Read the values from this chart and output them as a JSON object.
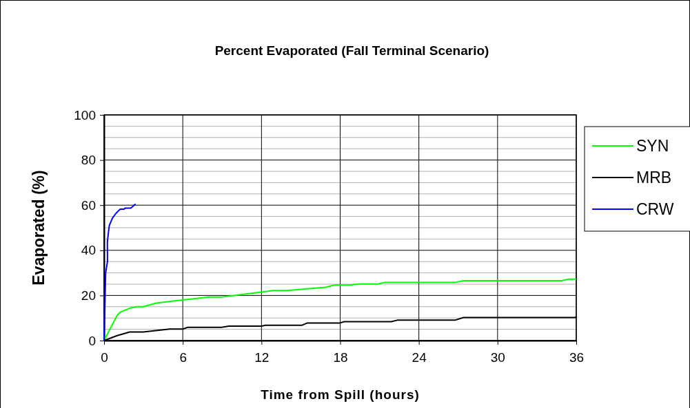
{
  "chart_data": {
    "type": "line",
    "title": "Percent Evaporated (Fall Terminal Scenario)",
    "xlabel": "Time from Spill (hours)",
    "ylabel": "Evaporated (%)",
    "xlim": [
      0,
      36
    ],
    "xticks": [
      0,
      6,
      12,
      18,
      24,
      30,
      36
    ],
    "ylim": [
      0,
      100
    ],
    "yticks": [
      0,
      20,
      40,
      60,
      80,
      100
    ],
    "grid": true,
    "legend": "right",
    "marker": "none",
    "line_style": "solid",
    "series": [
      {
        "name": "SYN",
        "color": "#00ff00",
        "x": [
          0,
          1.0,
          1.27,
          2.05,
          2.49,
          3.0,
          3.98,
          6.0,
          8.0,
          8.96,
          12.0,
          12.9,
          13.95,
          16.9,
          17.6,
          18.8,
          19.4,
          20.9,
          21.4,
          26.8,
          27.4,
          34.9,
          35.4,
          36
        ],
        "values": [
          0,
          11.2,
          12.7,
          14.5,
          15,
          15,
          16.6,
          18,
          19.3,
          19.3,
          21.5,
          22.2,
          22.2,
          23.6,
          24.6,
          24.6,
          25.1,
          25.1,
          25.8,
          25.8,
          26.5,
          26.5,
          27.2,
          27.2
        ]
      },
      {
        "name": "MRB",
        "color": "#000000",
        "x": [
          0,
          1.0,
          1.96,
          3.0,
          5.0,
          6.0,
          6.4,
          8.96,
          9.5,
          12.0,
          12.3,
          15.1,
          15.5,
          18.0,
          18.3,
          21.9,
          22.4,
          26.8,
          27.4,
          35.9,
          36
        ],
        "values": [
          0,
          2.2,
          3.8,
          3.8,
          5.1,
          5.1,
          5.9,
          5.9,
          6.4,
          6.4,
          6.8,
          6.8,
          7.8,
          7.8,
          8.4,
          8.4,
          9.1,
          9.1,
          10.2,
          10.2,
          10.6
        ]
      },
      {
        "name": "CRW",
        "color": "#0000ff",
        "x": [
          0,
          0.12,
          0.26,
          0.25,
          0.35,
          0.4,
          0.65,
          0.91,
          1.22,
          1.52,
          1.6,
          2.04,
          2.4
        ],
        "values": [
          0,
          30,
          35,
          43.7,
          48.8,
          51,
          54.4,
          56.4,
          58.2,
          58.2,
          58.7,
          58.7,
          60.5
        ]
      }
    ]
  }
}
